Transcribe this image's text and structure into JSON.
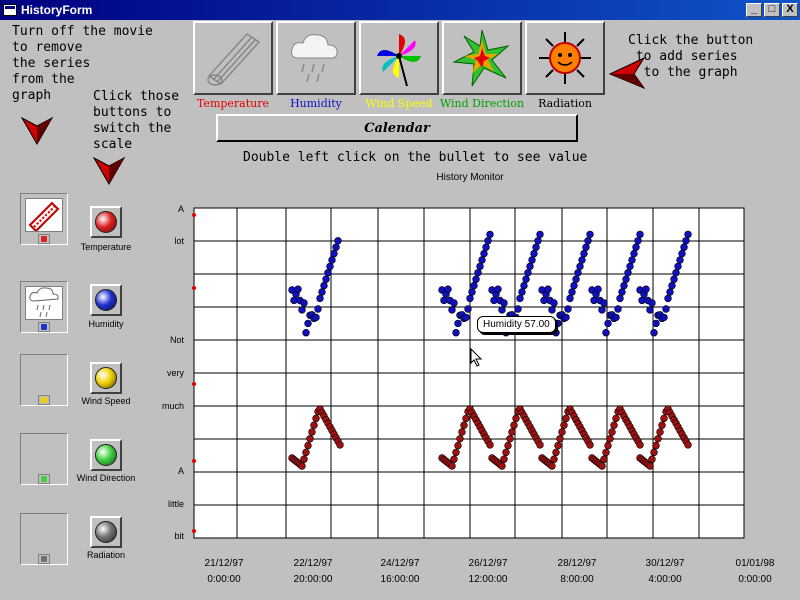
{
  "window": {
    "title": "HistoryForm",
    "min": "_",
    "max": "□",
    "close": "X"
  },
  "instructions": {
    "remove_series": "Turn off the movie\nto remove\nthe series\nfrom the\ngraph",
    "switch_scale": "Click those\nbuttons to\nswitch the\nscale",
    "add_series": "Click the button\n to add series\n  to the graph",
    "double_click": "Double left click on the bullet to see value"
  },
  "series_buttons": [
    {
      "label": "Temperature",
      "color": "#e00000",
      "icon": "thermometer-icon"
    },
    {
      "label": "Humidity",
      "color": "#1010c0",
      "icon": "rain-cloud-icon"
    },
    {
      "label": "Wind Speed",
      "color": "#ffff00",
      "icon": "pinwheel-icon"
    },
    {
      "label": "Wind Direction",
      "color": "#00a000",
      "icon": "compass-star-icon"
    },
    {
      "label": "Radiation",
      "color": "#000000",
      "icon": "sun-icon"
    }
  ],
  "calendar_label": "Calendar",
  "scale_buttons": [
    {
      "label": "Temperature",
      "color": "#e02020"
    },
    {
      "label": "Humidity",
      "color": "#2030d0"
    },
    {
      "label": "Wind Speed",
      "color": "#f0d000"
    },
    {
      "label": "Wind Direction",
      "color": "#40d040"
    },
    {
      "label": "Radiation",
      "color": "#707070"
    }
  ],
  "chart_data": {
    "type": "scatter",
    "title": "History Monitor",
    "y_tick_labels": [
      "A",
      "lot",
      "Not",
      "very",
      "much",
      "A",
      "little",
      "bit"
    ],
    "x_tick_labels": [
      {
        "date": "21/12/97",
        "time": "0:00:00"
      },
      {
        "date": "22/12/97",
        "time": "20:00:00"
      },
      {
        "date": "24/12/97",
        "time": "16:00:00"
      },
      {
        "date": "26/12/97",
        "time": "12:00:00"
      },
      {
        "date": "28/12/97",
        "time": "8:00:00"
      },
      {
        "date": "30/12/97",
        "time": "4:00:00"
      },
      {
        "date": "01/01/98",
        "time": "0:00:00"
      }
    ],
    "series": [
      {
        "name": "Humidity",
        "color": "#1010c0"
      },
      {
        "name": "Temperature",
        "color": "#a01010"
      }
    ],
    "tooltip": "Humidity 57.00"
  }
}
